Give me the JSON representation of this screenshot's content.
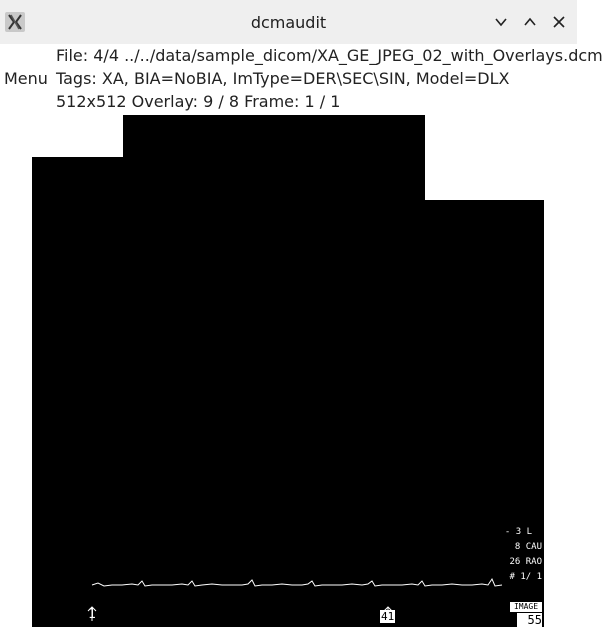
{
  "window": {
    "title": "dcmaudit"
  },
  "menu": {
    "label": "Menu"
  },
  "info": {
    "file_line": "File: 4/4 ../../data/sample_dicom/XA_GE_JPEG_02_with_Overlays.dcm",
    "tags_line": "Tags: XA, BIA=NoBIA, ImType=DER\\SEC\\SIN, Model=DLX",
    "status_line": "512x512 Overlay: 9 / 8 Frame: 1 / 1"
  },
  "overlay": {
    "text_l": "- 3 L",
    "text_cau": "8 CAU",
    "text_rao": "26 RAO",
    "text_frame": "# 1/ 1",
    "marker_start": "1",
    "marker_mid": "41",
    "image_label": "IMAGE",
    "image_number": "55"
  },
  "colors": {
    "titlebar": "#efefef",
    "viewport": "#000000",
    "overlay": "#ffffff"
  }
}
